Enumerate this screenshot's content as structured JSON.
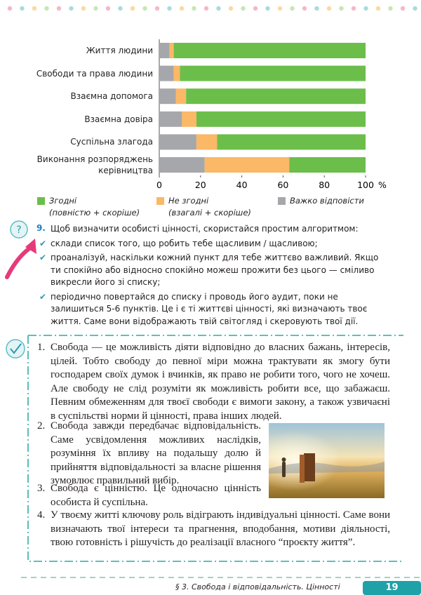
{
  "chart_data": {
    "type": "bar",
    "orientation": "horizontal",
    "stacked": true,
    "categories": [
      "Життя людини",
      "Свободи та права людини",
      "Взаємна допомога",
      "Взаємна довіра",
      "Суспільна злагода",
      "Виконання розпоряджень керівництва"
    ],
    "series": [
      {
        "name": "Згодні",
        "note": "(повністю + скоріше)",
        "color": "#6cbe4a",
        "values": [
          93,
          90,
          87,
          82,
          72,
          37
        ]
      },
      {
        "name": "Не згодні",
        "note": "(взагалі + скоріше)",
        "color": "#fbb866",
        "values": [
          2,
          3,
          5,
          7,
          10,
          41
        ]
      },
      {
        "name": "Важко відповісти",
        "color": "#a6a7aa",
        "values": [
          5,
          7,
          8,
          11,
          18,
          22
        ]
      }
    ],
    "xlim": [
      0,
      100
    ],
    "xticks": [
      0,
      20,
      40,
      60,
      80,
      100
    ],
    "x_unit": "%",
    "grid": false
  },
  "task": {
    "number": "9.",
    "intro": "Щоб визначити особисті цінності, скористайся простим алгоритмом:",
    "items": [
      "склади список того, що робить тебе щасливим / щасливою;",
      "проаналізуй, наскільки кожний пункт для тебе життєво важливий. Якщо ти спокійно або відносно спокійно можеш прожити без цього — сміливо викресли його зі списку;",
      "періодично повертайся до списку і проводь його аудит, поки не залишиться 5-6 пунктів. Це і є ті життєві цінності, які визначають твоє життя. Саме вони відображають твій світогляд і скеровують твої дії."
    ]
  },
  "summary": {
    "items": [
      {
        "number": "1.",
        "text": "Свобода — це можливість діяти відповідно до власних бажань, інтересів, цілей. Тобто свободу до певної міри можна трактувати як змогу бути господарем своїх думок і вчинків, як право не робити того, чого не хочеш. Але свободу не слід розуміти як можливість робити все, що забажаєш. Певним обмеженням для твоєї свободи є вимоги закону, а також узвичаєні в суспільстві норми й цінності, права інших людей."
      },
      {
        "number": "2.",
        "text": "Свобода завжди передбачає відповідальність. Саме усвідомлення можливих наслідків, розуміння їх впливу на подальшу долю й прийняття відповідальності за власне рішення зумовлює правильний вибір."
      },
      {
        "number": "3.",
        "text": "Свобода є цінністю. Це одночасно цінність особиста й суспільна."
      },
      {
        "number": "4.",
        "text": "У твоєму житті ключову роль відіграють індивідуальні цінності. Саме вони визначають твої інтереси та прагнення, вподобання, мотиви діяльності, твою готовність і рішучість до реалізації власного “проєкту життя”."
      }
    ]
  },
  "footer": {
    "section": "§ 3. Свобода і відповідальність. Цінності",
    "page": "19"
  }
}
